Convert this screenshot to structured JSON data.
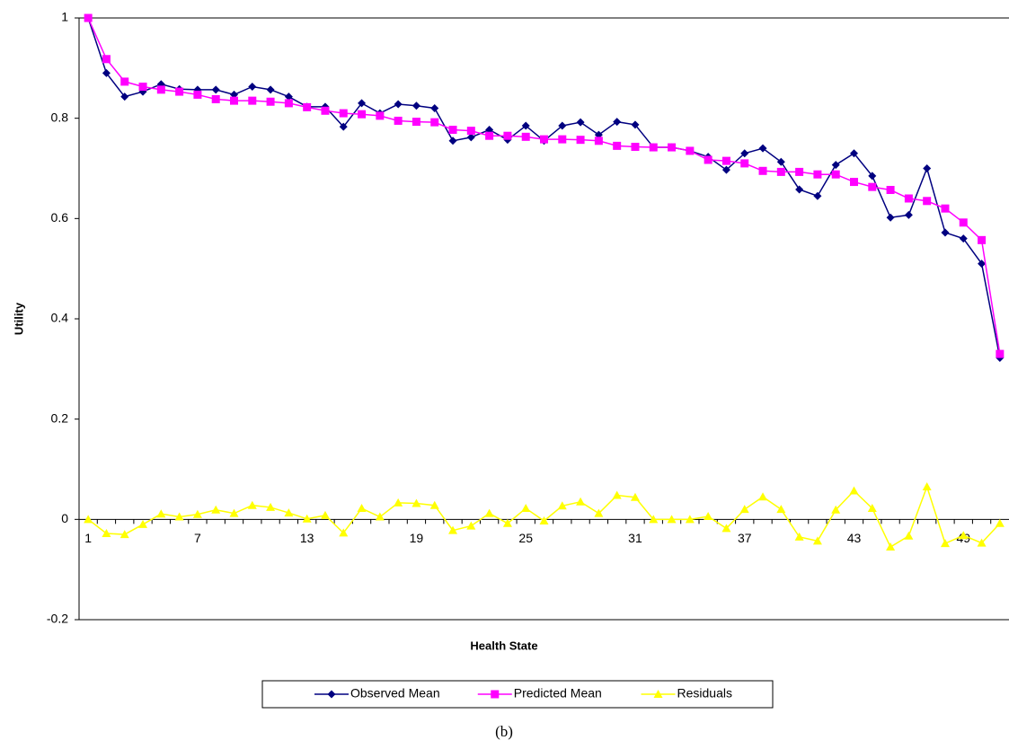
{
  "chart_data": {
    "type": "line",
    "y_label": "Utility",
    "x_label": "Health State",
    "caption": "(b)",
    "legend": "bottom",
    "categories": [
      1,
      null,
      null,
      null,
      null,
      null,
      7,
      null,
      null,
      null,
      null,
      null,
      13,
      null,
      null,
      null,
      null,
      null,
      19,
      null,
      null,
      null,
      null,
      null,
      25,
      null,
      null,
      null,
      null,
      null,
      31,
      null,
      null,
      null,
      null,
      null,
      37,
      null,
      null,
      null,
      null,
      null,
      43,
      null,
      null,
      null,
      null,
      null,
      49,
      null,
      null
    ],
    "ylim": [
      -0.2,
      1
    ],
    "yticks": [
      -0.2,
      0,
      0.2,
      0.4,
      0.6,
      0.8,
      1
    ],
    "series": [
      {
        "name": "Observed Mean",
        "color": "#000080",
        "marker": "diamond",
        "values": [
          1.0,
          0.89,
          0.843,
          0.853,
          0.868,
          0.858,
          0.857,
          0.857,
          0.847,
          0.863,
          0.857,
          0.843,
          0.823,
          0.823,
          0.783,
          0.83,
          0.81,
          0.828,
          0.825,
          0.82,
          0.755,
          0.762,
          0.777,
          0.757,
          0.785,
          0.755,
          0.785,
          0.792,
          0.767,
          0.793,
          0.787,
          0.742,
          0.742,
          0.735,
          0.723,
          0.697,
          0.73,
          0.74,
          0.713,
          0.658,
          0.645,
          0.707,
          0.73,
          0.685,
          0.602,
          0.607,
          0.7,
          0.572,
          0.56,
          0.51,
          0.322
        ]
      },
      {
        "name": "Predicted Mean",
        "color": "#ff00ff",
        "marker": "square",
        "values": [
          1.0,
          0.918,
          0.873,
          0.863,
          0.857,
          0.853,
          0.847,
          0.838,
          0.835,
          0.835,
          0.833,
          0.83,
          0.822,
          0.815,
          0.81,
          0.808,
          0.805,
          0.795,
          0.793,
          0.792,
          0.777,
          0.775,
          0.765,
          0.765,
          0.763,
          0.758,
          0.758,
          0.757,
          0.755,
          0.745,
          0.743,
          0.742,
          0.742,
          0.735,
          0.717,
          0.715,
          0.71,
          0.695,
          0.693,
          0.693,
          0.688,
          0.688,
          0.673,
          0.663,
          0.657,
          0.64,
          0.635,
          0.62,
          0.592,
          0.557,
          0.33
        ]
      },
      {
        "name": "Residuals",
        "color": "#ffff00",
        "marker": "triangle",
        "values": [
          0,
          -0.028,
          -0.03,
          -0.01,
          0.011,
          0.005,
          0.01,
          0.019,
          0.012,
          0.028,
          0.024,
          0.013,
          0.001,
          0.008,
          -0.027,
          0.022,
          0.005,
          0.033,
          0.032,
          0.028,
          -0.022,
          -0.013,
          0.012,
          -0.008,
          0.022,
          -0.003,
          0.027,
          0.035,
          0.012,
          0.048,
          0.044,
          0,
          0,
          0,
          0.006,
          -0.018,
          0.02,
          0.045,
          0.02,
          -0.035,
          -0.043,
          0.019,
          0.057,
          0.022,
          -0.055,
          -0.033,
          0.065,
          -0.048,
          -0.032,
          -0.047,
          -0.008
        ]
      }
    ]
  }
}
